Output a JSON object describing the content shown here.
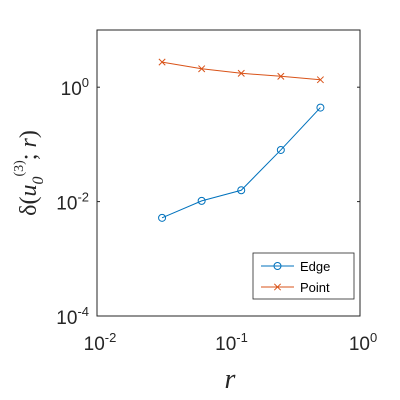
{
  "chart_data": {
    "type": "line",
    "xscale": "log",
    "yscale": "log",
    "xlim": [
      0.01,
      1
    ],
    "ylim": [
      0.0001,
      10
    ],
    "xlabel": "r",
    "ylabel": "δ(u₀⁽³⁾; r)",
    "x_ticks": [
      {
        "base": "10",
        "exp": "-2",
        "value": 0.01
      },
      {
        "base": "10",
        "exp": "0",
        "value": 1
      }
    ],
    "x_minor_tick": {
      "base": "10",
      "exp": "-1",
      "value": 0.1
    },
    "y_ticks": [
      {
        "base": "10",
        "exp": "-4",
        "value": 0.0001
      },
      {
        "base": "10",
        "exp": "-2",
        "value": 0.01
      },
      {
        "base": "10",
        "exp": "0",
        "value": 1
      }
    ],
    "grid": false,
    "legend_position": "bottom-right",
    "series": [
      {
        "name": "Edge",
        "marker": "circle",
        "color": "#0072BD",
        "x": [
          0.03125,
          0.0625,
          0.125,
          0.25,
          0.5
        ],
        "y": [
          0.0052,
          0.0103,
          0.0158,
          0.08,
          0.44
        ]
      },
      {
        "name": "Point",
        "marker": "x",
        "color": "#D95319",
        "x": [
          0.03125,
          0.0625,
          0.125,
          0.25,
          0.5
        ],
        "y": [
          2.75,
          2.1,
          1.75,
          1.55,
          1.35
        ]
      }
    ]
  }
}
